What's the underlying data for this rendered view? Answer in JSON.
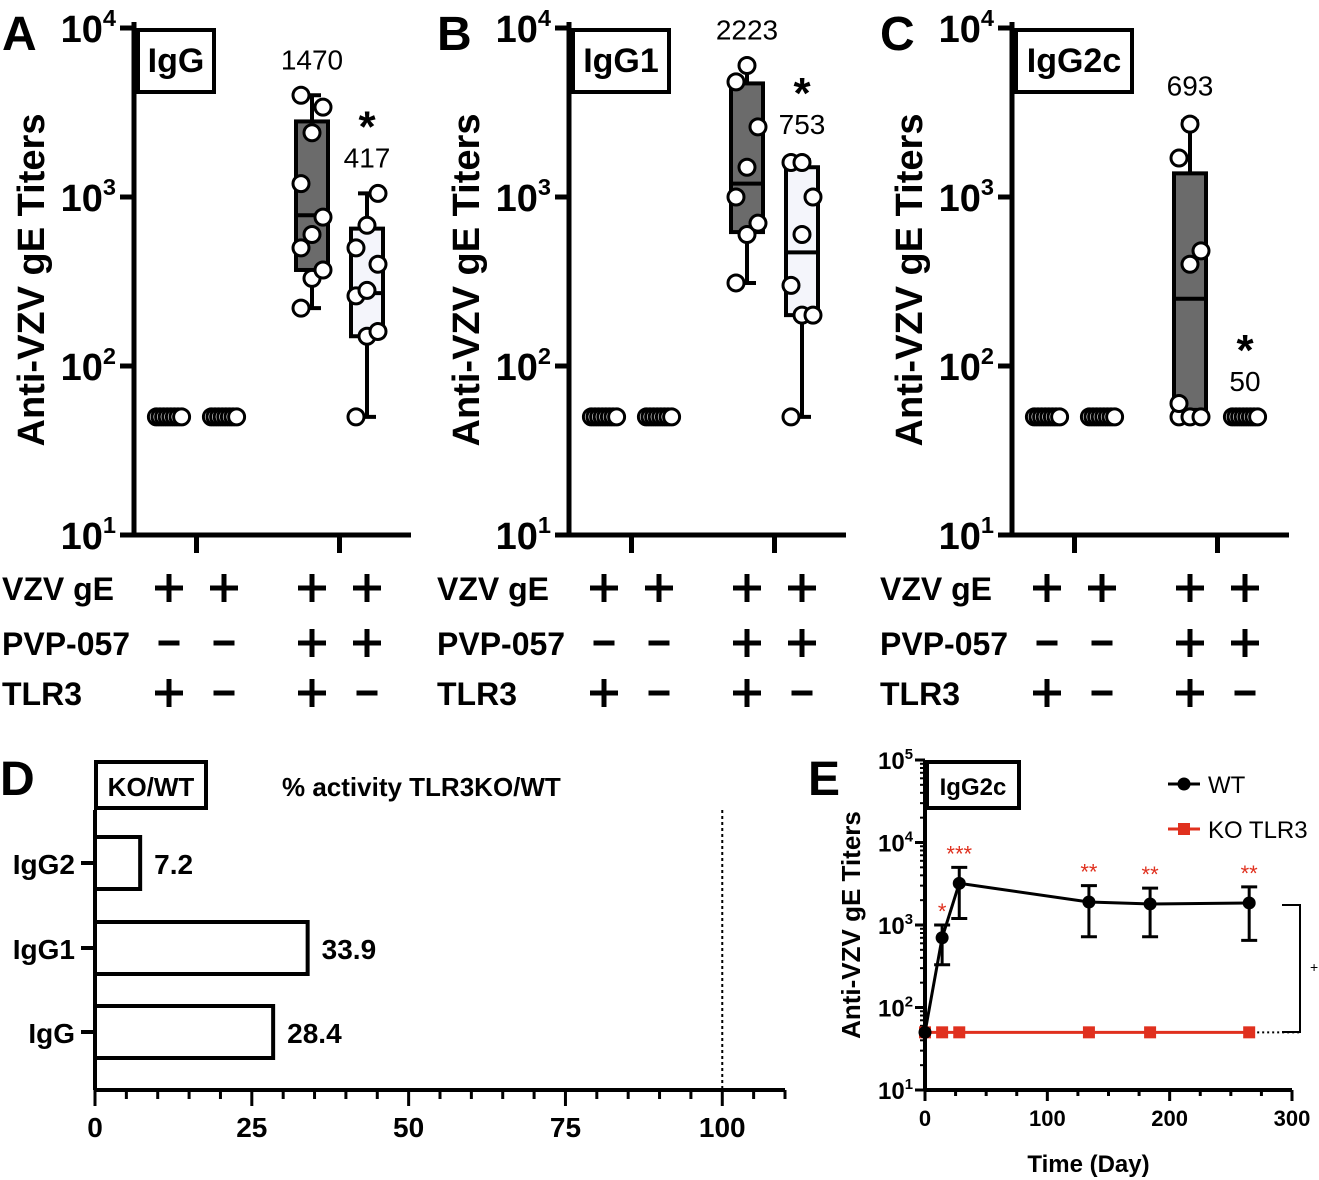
{
  "colors": {
    "box_dark": "#6b6b6b",
    "box_light": "#f4f5fb",
    "black": "#000000",
    "red": "#e0301e"
  },
  "panels_abc": [
    {
      "letter": "A",
      "title": "IgG",
      "ylabel": "Anti-VZV gE Titers",
      "yticks": [
        {
          "base": "10",
          "exp": "4",
          "v": 10000
        },
        {
          "base": "10",
          "exp": "3",
          "v": 1000
        },
        {
          "base": "10",
          "exp": "2",
          "v": 100
        },
        {
          "base": "10",
          "exp": "1",
          "v": 10
        }
      ],
      "groups": [
        {
          "pos": 1,
          "points": [
            50,
            50,
            50,
            50,
            50,
            50,
            50,
            50
          ]
        },
        {
          "pos": 2,
          "points": [
            50,
            50,
            50,
            50,
            50,
            50,
            50,
            50
          ]
        },
        {
          "pos": 3.6,
          "box": {
            "min": 220,
            "q1": 370,
            "median": 780,
            "q3": 2800,
            "max": 4000
          },
          "fill": "dark",
          "points": [
            220,
            330,
            370,
            500,
            600,
            760,
            1200,
            2400,
            3400,
            4000
          ],
          "label": "1470",
          "star": false
        },
        {
          "pos": 4.6,
          "box": {
            "min": 50,
            "q1": 150,
            "median": 270,
            "q3": 650,
            "max": 1050
          },
          "fill": "light",
          "points": [
            50,
            150,
            160,
            260,
            280,
            400,
            500,
            680,
            1050
          ],
          "label": "417",
          "star": true
        }
      ]
    },
    {
      "letter": "B",
      "title": "IgG1",
      "ylabel": "Anti-VZV gE Titers",
      "yticks": [
        {
          "base": "10",
          "exp": "4",
          "v": 10000
        },
        {
          "base": "10",
          "exp": "3",
          "v": 1000
        },
        {
          "base": "10",
          "exp": "2",
          "v": 100
        },
        {
          "base": "10",
          "exp": "1",
          "v": 10
        }
      ],
      "groups": [
        {
          "pos": 1,
          "points": [
            50,
            50,
            50,
            50,
            50,
            50,
            50,
            50
          ]
        },
        {
          "pos": 2,
          "points": [
            50,
            50,
            50,
            50,
            50,
            50,
            50,
            50
          ]
        },
        {
          "pos": 3.6,
          "box": {
            "min": 310,
            "q1": 620,
            "median": 1200,
            "q3": 4700,
            "max": 6000
          },
          "fill": "dark",
          "points": [
            310,
            600,
            700,
            1000,
            1500,
            2600,
            4800,
            6000
          ],
          "label": "2223",
          "star": false
        },
        {
          "pos": 4.6,
          "box": {
            "min": 50,
            "q1": 200,
            "median": 470,
            "q3": 1500,
            "max": 1650
          },
          "fill": "light",
          "points": [
            50,
            200,
            200,
            300,
            600,
            1000,
            1600,
            1600
          ],
          "label": "753",
          "star": true
        }
      ]
    },
    {
      "letter": "C",
      "title": "IgG2c",
      "ylabel": "Anti-VZV gE Titers",
      "yticks": [
        {
          "base": "10",
          "exp": "4",
          "v": 10000
        },
        {
          "base": "10",
          "exp": "3",
          "v": 1000
        },
        {
          "base": "10",
          "exp": "2",
          "v": 100
        },
        {
          "base": "10",
          "exp": "1",
          "v": 10
        }
      ],
      "groups": [
        {
          "pos": 1,
          "points": [
            50,
            50,
            50,
            50,
            50,
            50,
            50,
            50
          ]
        },
        {
          "pos": 2,
          "points": [
            50,
            50,
            50,
            50,
            50,
            50,
            50,
            50
          ]
        },
        {
          "pos": 3.6,
          "box": {
            "min": 50,
            "q1": 55,
            "median": 250,
            "q3": 1380,
            "max": 2800
          },
          "fill": "dark",
          "points": [
            50,
            50,
            50,
            60,
            400,
            480,
            1700,
            2700
          ],
          "label": "693",
          "star": false
        },
        {
          "pos": 4.6,
          "points": [
            50,
            50,
            50,
            50,
            50,
            50,
            50,
            50
          ],
          "label": "50",
          "star": true
        }
      ]
    }
  ],
  "conditions": {
    "rows": [
      {
        "label": "VZV gE",
        "values": [
          "+",
          "+",
          "+",
          "+"
        ]
      },
      {
        "label": "PVP-057",
        "values": [
          "–",
          "–",
          "+",
          "+"
        ]
      },
      {
        "label": "TLR3",
        "values": [
          "+",
          "–",
          "+",
          "–"
        ]
      }
    ]
  },
  "star": "*",
  "panel_d": {
    "letter": "D",
    "title_box": "KO/WT",
    "title": "% activity TLR3KO/WT",
    "chart_data": {
      "type": "bar",
      "orientation": "horizontal",
      "categories": [
        "IgG2",
        "IgG1",
        "IgG"
      ],
      "values": [
        7.2,
        33.9,
        28.4
      ],
      "value_labels": [
        "7.2",
        "33.9",
        "28.4"
      ],
      "xlim": [
        0,
        110
      ],
      "xticks": [
        0,
        25,
        50,
        75,
        100
      ],
      "xtick_labels": [
        "0",
        "25",
        "50",
        "75",
        "100"
      ],
      "reference_line": 100
    }
  },
  "panel_e": {
    "letter": "E",
    "title_box": "IgG2c",
    "chart_data": {
      "type": "line",
      "ylabel": "Anti-VZV gE Titers",
      "xlabel": "Time (Day)",
      "xlim": [
        0,
        300
      ],
      "xticks": [
        "0",
        "100",
        "200",
        "300"
      ],
      "ylim": [
        10,
        100000
      ],
      "yscale": "log",
      "yticks": [
        {
          "base": "10",
          "exp": "5",
          "v": 100000
        },
        {
          "base": "10",
          "exp": "4",
          "v": 10000
        },
        {
          "base": "10",
          "exp": "3",
          "v": 1000
        },
        {
          "base": "10",
          "exp": "2",
          "v": 100
        },
        {
          "base": "10",
          "exp": "1",
          "v": 10
        }
      ],
      "series": [
        {
          "name": "WT",
          "color": "#000000",
          "marker": "circle",
          "x": [
            0,
            14,
            28,
            134,
            184,
            265
          ],
          "y": [
            50,
            700,
            3200,
            1900,
            1800,
            1850
          ],
          "err_low": [
            50,
            330,
            1200,
            720,
            720,
            650
          ],
          "err_high": [
            50,
            1000,
            5000,
            3000,
            2800,
            2900
          ]
        },
        {
          "name": "KO TLR3",
          "color": "#e0301e",
          "marker": "square",
          "x": [
            0,
            14,
            28,
            134,
            184,
            265
          ],
          "y": [
            50,
            50,
            50,
            50,
            50,
            50
          ]
        }
      ],
      "significance": [
        {
          "x": 14,
          "label": "*"
        },
        {
          "x": 28,
          "label": "***"
        },
        {
          "x": 134,
          "label": "**"
        },
        {
          "x": 184,
          "label": "**"
        },
        {
          "x": 265,
          "label": "**"
        }
      ],
      "bracket_label": "+"
    }
  }
}
